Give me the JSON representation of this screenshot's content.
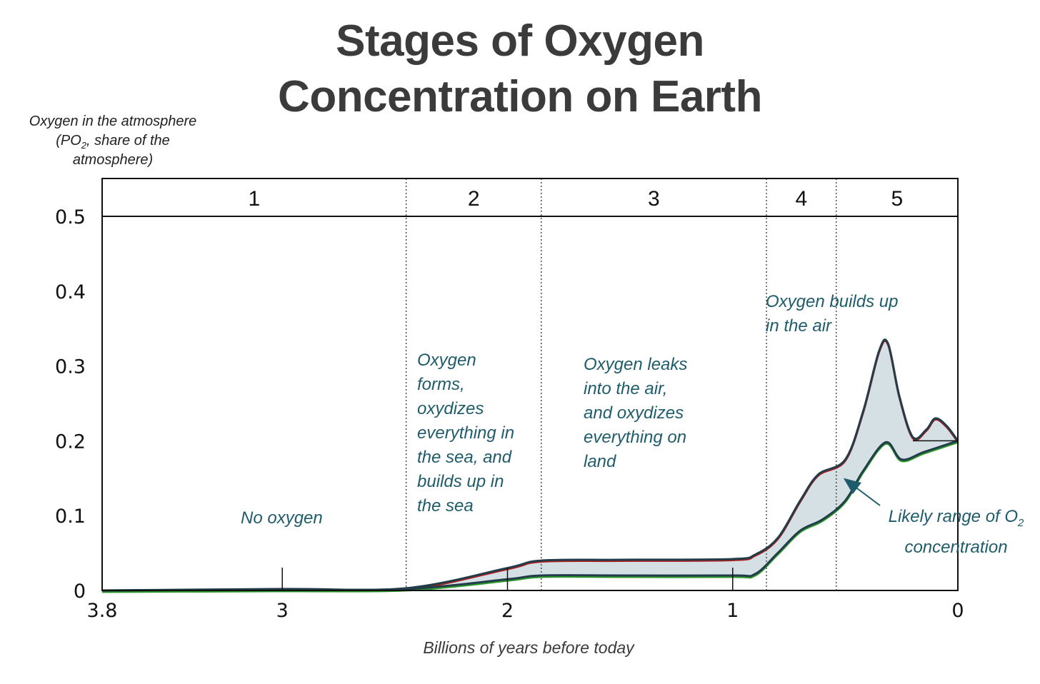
{
  "title": [
    "Stages of Oxygen",
    "Concentration on Earth"
  ],
  "y_axis_label": {
    "line1": "Oxygen in the atmosphere",
    "line2_pre": "(PO",
    "line2_sub": "2",
    "line2_post": ", share of the",
    "line3": "atmosphere)"
  },
  "x_axis_label": "Billions of years before today",
  "chart_data": {
    "type": "area",
    "x_unit": "billions of years before today",
    "xlim": [
      3.8,
      0
    ],
    "ylim": [
      0,
      0.55
    ],
    "x_ticks": [
      {
        "value": 3.8,
        "label": "3.8"
      },
      {
        "value": 3,
        "label": "3"
      },
      {
        "value": 2,
        "label": "2"
      },
      {
        "value": 1,
        "label": "1"
      },
      {
        "value": 0,
        "label": "0"
      }
    ],
    "y_ticks": [
      {
        "value": 0,
        "label": "0"
      },
      {
        "value": 0.1,
        "label": "0.1"
      },
      {
        "value": 0.2,
        "label": "0.2"
      },
      {
        "value": 0.3,
        "label": "0.3"
      },
      {
        "value": 0.4,
        "label": "0.4"
      },
      {
        "value": 0.5,
        "label": "0.5"
      }
    ],
    "stages": [
      {
        "label": "1",
        "start": 3.8,
        "end": 2.45
      },
      {
        "label": "2",
        "start": 2.45,
        "end": 1.85
      },
      {
        "label": "3",
        "start": 1.85,
        "end": 0.85
      },
      {
        "label": "4",
        "start": 0.85,
        "end": 0.54
      },
      {
        "label": "5",
        "start": 0.54,
        "end": 0
      }
    ],
    "upper_bound": [
      [
        3.8,
        0
      ],
      [
        3.0,
        0.002
      ],
      [
        2.45,
        0.003
      ],
      [
        2.0,
        0.03
      ],
      [
        1.85,
        0.04
      ],
      [
        1.5,
        0.041
      ],
      [
        1.0,
        0.042
      ],
      [
        0.9,
        0.048
      ],
      [
        0.8,
        0.07
      ],
      [
        0.7,
        0.12
      ],
      [
        0.62,
        0.155
      ],
      [
        0.5,
        0.175
      ],
      [
        0.42,
        0.24
      ],
      [
        0.35,
        0.32
      ],
      [
        0.31,
        0.33
      ],
      [
        0.26,
        0.26
      ],
      [
        0.2,
        0.205
      ],
      [
        0.14,
        0.215
      ],
      [
        0.1,
        0.23
      ],
      [
        0.05,
        0.22
      ],
      [
        0,
        0.2
      ]
    ],
    "lower_bound": [
      [
        3.8,
        0
      ],
      [
        3.0,
        0.001
      ],
      [
        2.45,
        0.002
      ],
      [
        2.0,
        0.015
      ],
      [
        1.85,
        0.02
      ],
      [
        1.5,
        0.02
      ],
      [
        1.0,
        0.02
      ],
      [
        0.9,
        0.022
      ],
      [
        0.8,
        0.05
      ],
      [
        0.7,
        0.08
      ],
      [
        0.6,
        0.095
      ],
      [
        0.5,
        0.12
      ],
      [
        0.42,
        0.16
      ],
      [
        0.32,
        0.198
      ],
      [
        0.25,
        0.175
      ],
      [
        0.15,
        0.185
      ],
      [
        0,
        0.2
      ]
    ],
    "colors": {
      "band_fill": "#d4e0e4",
      "band_edge": "#223c4a",
      "upper_accent": "#b01f1f",
      "lower_accent": "#2e9a2e",
      "annotation": "#1f5c6b"
    },
    "annotations": [
      {
        "stage": "1",
        "lines": [
          "No oxygen"
        ]
      },
      {
        "stage": "2",
        "lines": [
          "Oxygen",
          "forms,",
          "oxydizes",
          "everything in",
          "the sea, and",
          "builds up in",
          "the sea"
        ]
      },
      {
        "stage": "3",
        "lines": [
          "Oxygen leaks",
          "into the air,",
          "and oxydizes",
          "everything on",
          "land"
        ]
      },
      {
        "stage": "4",
        "lines": [
          "Oxygen builds up",
          "in the air"
        ]
      },
      {
        "stage": "range",
        "pre": "Likely range of O",
        "sub": "2",
        "line2": "concentration"
      }
    ]
  }
}
